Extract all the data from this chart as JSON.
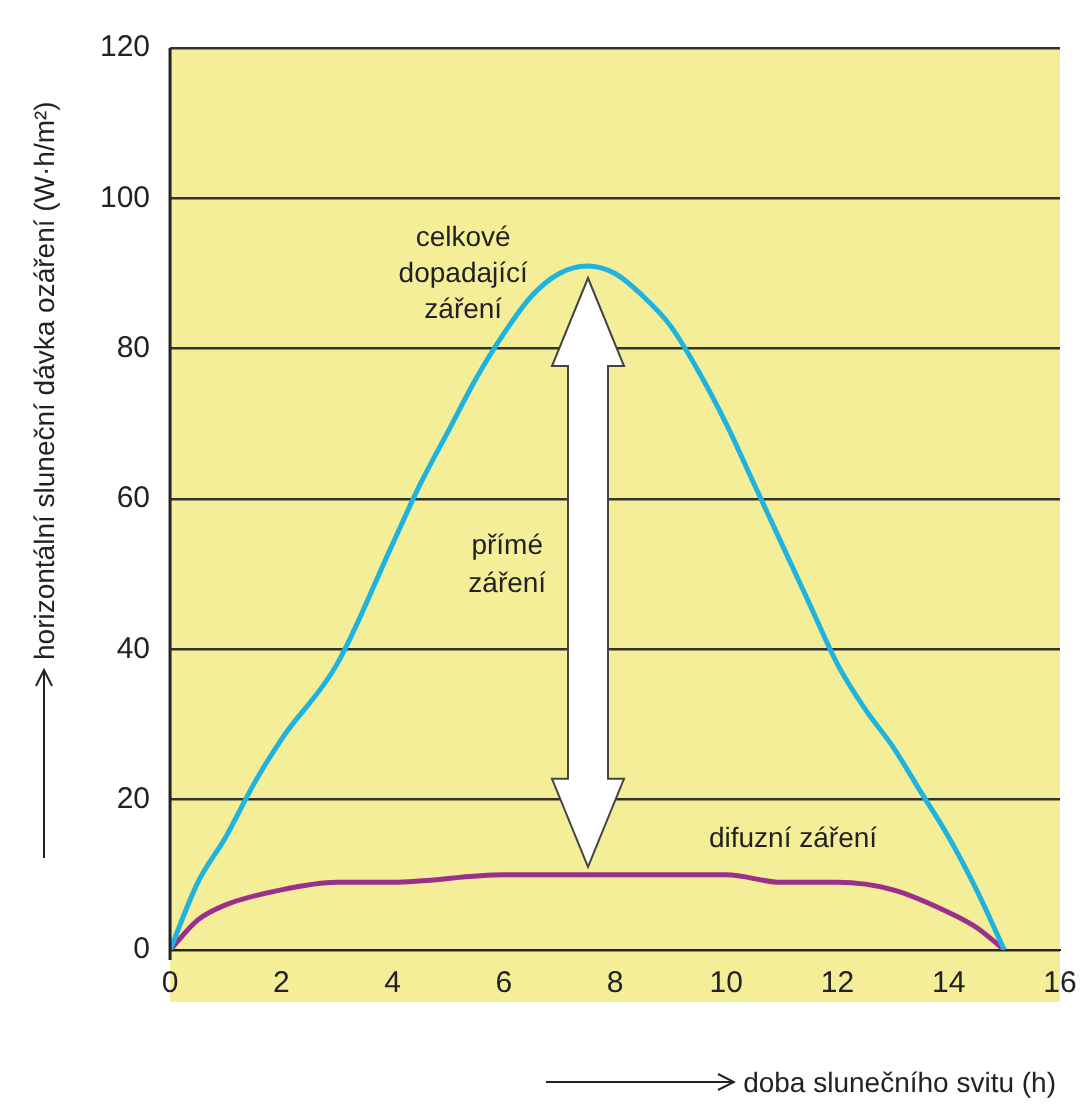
{
  "chart_data": {
    "type": "line",
    "xlabel": "doba slunečního svitu (h)",
    "ylabel": "horizontální sluneční dávka ozáření (W·h/m²)",
    "xlim": [
      0,
      16
    ],
    "xticks": [
      0,
      2,
      4,
      6,
      8,
      10,
      12,
      14,
      16
    ],
    "ylim": [
      0,
      120
    ],
    "yticks": [
      0,
      20,
      40,
      60,
      80,
      100,
      120
    ],
    "grid": "y",
    "legend": false,
    "marker": "none",
    "line_style": "solid",
    "annotations": [
      "přímé záření"
    ],
    "series": [
      {
        "name": "celkové dopadající záření",
        "color": "#1fb3de",
        "x": [
          0,
          0.5,
          1,
          1.5,
          2,
          3,
          4,
          4.5,
          5,
          5.5,
          6,
          6.5,
          7,
          7.5,
          8,
          8.5,
          9,
          9.5,
          10,
          10.5,
          11,
          11.5,
          12,
          12.5,
          13,
          13.5,
          14,
          14.5,
          15
        ],
        "values": [
          0,
          9,
          15,
          22,
          28,
          38,
          54,
          62,
          69,
          76,
          82,
          87,
          90,
          91,
          90,
          87,
          83,
          77,
          70,
          62,
          54,
          46,
          38,
          32,
          27,
          21,
          15,
          8,
          0
        ]
      },
      {
        "name": "difuzní záření",
        "color": "#9b2f8c",
        "x": [
          0,
          0.5,
          1,
          2,
          3,
          4,
          6,
          7.5,
          10,
          11,
          12,
          13,
          14,
          14.5,
          15
        ],
        "values": [
          0,
          4,
          6,
          8,
          9,
          9,
          10,
          10,
          10,
          9,
          9,
          8,
          5,
          3,
          0
        ]
      }
    ]
  }
}
